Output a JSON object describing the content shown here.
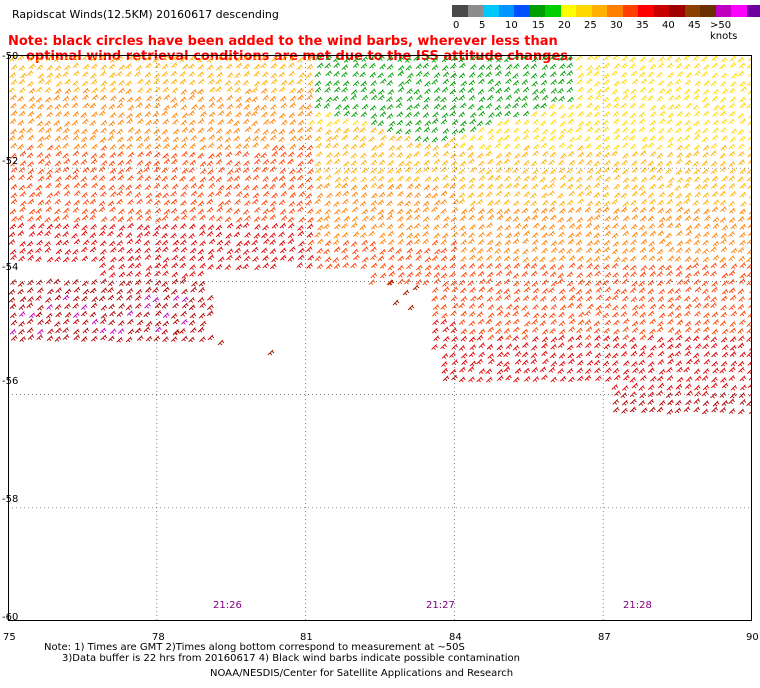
{
  "title": "Rapidscat Winds(12.5KM) 20160617 descending",
  "note": {
    "line1": "Note: black circles have been added to the wind barbs, wherever less than",
    "line2": "optimal wind retrieval conditions are met due to the ISS attitude changes."
  },
  "legend": {
    "colors": [
      "#4a4a4a",
      "#8c8c8c",
      "#00c8ff",
      "#0096ff",
      "#0050ff",
      "#00a000",
      "#00d000",
      "#ffff00",
      "#ffd800",
      "#ffb000",
      "#ff8000",
      "#ff4000",
      "#ff0000",
      "#c80000",
      "#a00000",
      "#8a4000",
      "#6b3000",
      "#c000c0",
      "#ff00ff",
      "#7000a0",
      "#400070"
    ],
    "labels": [
      "0",
      "5",
      "10",
      "15",
      "20",
      "25",
      "30",
      "35",
      "40",
      "45",
      ">50 knots"
    ]
  },
  "map": {
    "lat_labels": [
      "-50",
      "-52",
      "-54",
      "-56",
      "-58",
      "-60"
    ],
    "lon_labels": [
      "75",
      "78",
      "81",
      "84",
      "87",
      "90"
    ],
    "times": [
      "21:26",
      "21:27",
      "21:28"
    ]
  },
  "footer": {
    "line1": "Note: 1) Times are GMT 2)Times along bottom correspond to measurement at ~50S",
    "line2": "3)Data buffer is 22 hrs from 20160617 4) Black wind barbs indicate possible contamination"
  },
  "credit": "NOAA/NESDIS/Center for Satellite Applications and Research"
}
